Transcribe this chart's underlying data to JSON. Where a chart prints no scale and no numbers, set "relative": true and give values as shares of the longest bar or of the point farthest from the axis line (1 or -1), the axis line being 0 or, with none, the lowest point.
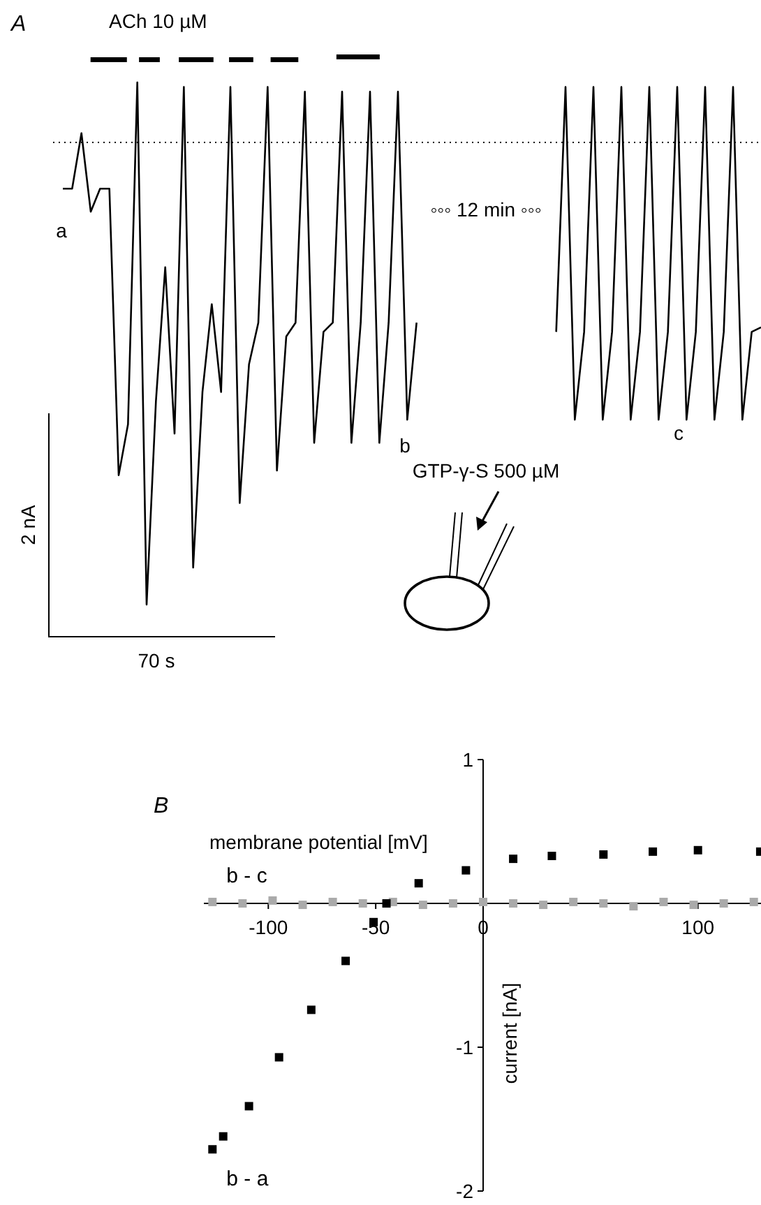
{
  "chart_data": [
    {
      "type": "line",
      "title": "A",
      "relative": true,
      "categories": [
        null,
        null,
        null,
        null,
        null,
        null,
        null,
        null,
        null,
        null,
        null,
        null,
        null,
        null,
        null,
        null,
        null,
        null,
        null,
        null,
        null,
        null,
        null,
        null,
        null,
        null,
        null,
        null,
        null,
        null,
        null,
        null,
        null,
        null,
        null,
        null,
        null,
        null,
        null,
        null,
        null,
        null,
        null,
        null,
        null,
        null,
        null,
        null,
        null,
        null,
        null,
        null,
        null,
        null,
        null,
        null,
        null,
        null,
        null,
        null,
        null,
        null,
        null,
        null,
        null,
        null,
        null,
        null,
        null,
        null,
        null,
        null,
        null,
        null,
        null,
        null
      ],
      "series": [
        {
          "color": "#000000",
          "values": [
            -0.1,
            -0.1,
            0.02,
            -0.15,
            -0.1,
            -0.1,
            -0.72,
            -0.61,
            0.13,
            -1,
            -0.56,
            -0.27,
            -0.63,
            0.12,
            -0.92,
            -0.54,
            -0.35,
            -0.54,
            0.12,
            -0.78,
            -0.48,
            -0.39,
            0.12,
            -0.71,
            -0.42,
            -0.39,
            0.11,
            -0.65,
            -0.41,
            -0.39,
            0.11,
            -0.65,
            -0.39,
            0.11,
            -0.65,
            -0.39,
            0.11,
            -0.6,
            -0.39,
            null,
            null,
            null,
            null,
            null,
            null,
            null,
            null,
            null,
            null,
            null,
            null,
            null,
            null,
            null,
            null,
            null,
            null,
            null,
            null,
            null,
            null,
            null,
            null,
            null,
            null,
            null,
            null,
            null,
            null,
            null,
            null,
            null,
            null,
            null,
            null,
            null
          ]
        },
        {
          "color": "#000000",
          "values": [
            null,
            null,
            null,
            null,
            null,
            null,
            null,
            null,
            null,
            null,
            null,
            null,
            null,
            null,
            null,
            null,
            null,
            null,
            null,
            null,
            null,
            null,
            null,
            null,
            null,
            null,
            null,
            null,
            null,
            null,
            null,
            null,
            null,
            null,
            null,
            null,
            null,
            null,
            null,
            null,
            null,
            null,
            null,
            null,
            null,
            null,
            null,
            null,
            null,
            null,
            null,
            null,
            null,
            -0.41,
            0.12,
            -0.6,
            -0.41,
            0.12,
            -0.6,
            -0.41,
            0.12,
            -0.6,
            -0.41,
            0.12,
            -0.6,
            -0.41,
            0.12,
            -0.6,
            -0.41,
            0.12,
            -0.6,
            -0.41,
            0.12,
            -0.6,
            -0.41,
            -0.4
          ]
        }
      ],
      "ref_lines": [
        {
          "axis": "y",
          "value": 0,
          "line_style": "dotted"
        }
      ],
      "annotations": [
        "ACh 10 µM",
        "a",
        "b",
        "c",
        "◦◦◦ 12 min ◦◦◦",
        "2 nA",
        "70 s",
        "GTP-γ-S 500 µM"
      ]
    },
    {
      "type": "scatter",
      "title": "B",
      "xlabel": "membrane potential [mV]",
      "ylabel": "current [nA]",
      "marker": "square",
      "xlim": [
        -130,
        130
      ],
      "ylim": [
        -2,
        1
      ],
      "xticks": [
        -100,
        -50,
        0,
        100
      ],
      "yticks": [
        -2,
        -1,
        1
      ],
      "series": [
        {
          "name": "b - c",
          "color": "#aaaaaa",
          "x": [
            -126,
            -112,
            -98,
            -84,
            -70,
            -56,
            -42,
            -28,
            -14,
            0,
            14,
            28,
            42,
            56,
            70,
            84,
            98,
            112,
            126
          ],
          "values": [
            0.01,
            0,
            0.02,
            -0.01,
            0.01,
            0,
            0.01,
            -0.01,
            0,
            0.01,
            0,
            -0.01,
            0.01,
            0,
            -0.02,
            0.01,
            -0.01,
            0,
            0.01
          ]
        },
        {
          "name": "b - a",
          "color": "#000000",
          "x": [
            -126,
            -121,
            -109,
            -95,
            -80,
            -64,
            -51,
            -45,
            -30,
            -8,
            14,
            32,
            56,
            79,
            100,
            129
          ],
          "values": [
            -1.71,
            -1.62,
            -1.41,
            -1.07,
            -0.74,
            -0.4,
            -0.13,
            0,
            0.14,
            0.23,
            0.31,
            0.33,
            0.34,
            0.36,
            0.37,
            0.36
          ]
        }
      ]
    }
  ]
}
